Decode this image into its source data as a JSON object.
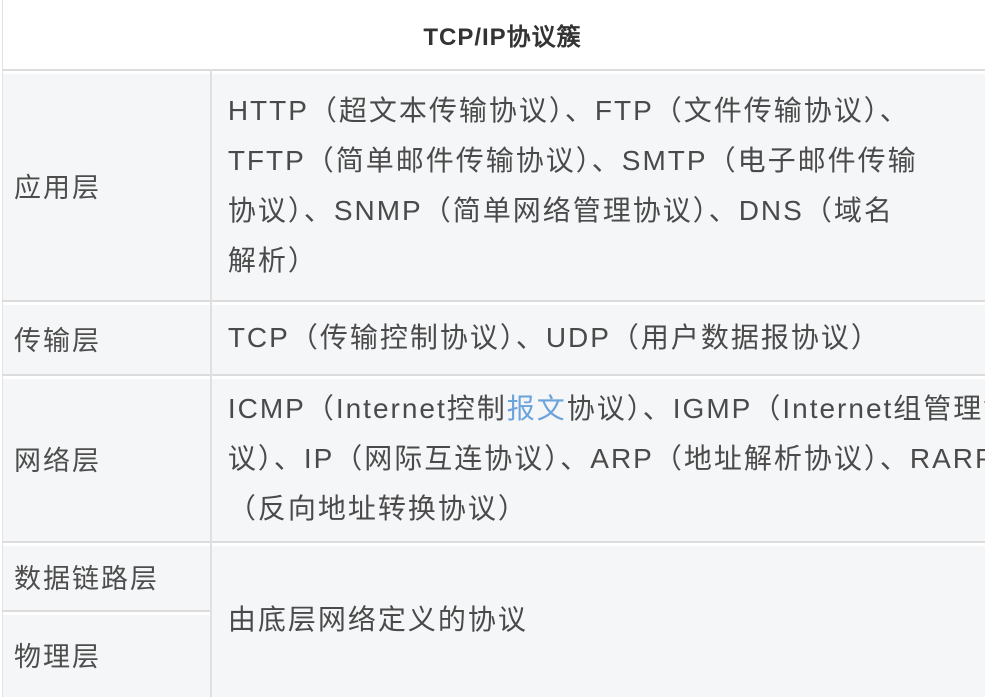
{
  "colors": {
    "link_blue": "#6ba3dc",
    "cell_background": "#f5f6f7",
    "border_gray": "#dcdcdc",
    "text_gray": "#4a4a4a"
  },
  "table": {
    "title": "TCP/IP协议簇",
    "rows": {
      "application": {
        "layer": "应用层",
        "lines": [
          "HTTP（超文本传输协议）、FTP（文件传输协议）、",
          "TFTP（简单邮件传输协议）、SMTP（电子邮件传输",
          "协议）、SNMP（简单网络管理协议）、DNS（域名",
          "解析）"
        ]
      },
      "transport": {
        "layer": "传输层",
        "content": "TCP（传输控制协议）、UDP（用户数据报协议）"
      },
      "network": {
        "layer": "网络层",
        "line1_before_link": "ICMP（Internet控制",
        "link_text": "报文",
        "line1_after_link": "协议）、IGMP（Internet组管理协",
        "line2": "议）、IP（网际互连协议）、ARP（地址解析协议）、RARP",
        "line3": "（反向地址转换协议）"
      },
      "datalink": {
        "layer": "数据链路层"
      },
      "physical": {
        "layer": "物理层"
      },
      "lower_layers_content": "由底层网络定义的协议"
    }
  }
}
